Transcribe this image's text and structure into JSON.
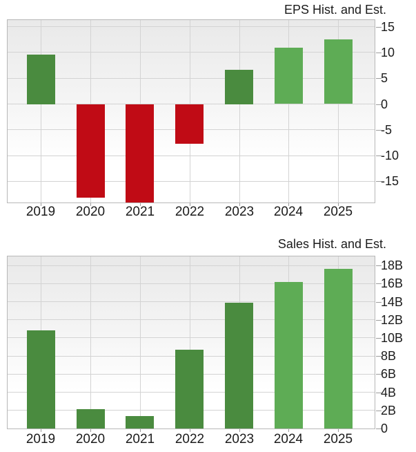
{
  "chart_data": [
    {
      "type": "bar",
      "title": "EPS Hist. and Est.",
      "categories": [
        "2019",
        "2020",
        "2021",
        "2022",
        "2023",
        "2024",
        "2025"
      ],
      "values": [
        9.6,
        -18.1,
        -19.1,
        -7.6,
        6.7,
        10.9,
        12.5
      ],
      "bar_roles": [
        "historical",
        "negative",
        "negative",
        "negative",
        "historical",
        "estimate",
        "estimate"
      ],
      "xlabel": "",
      "ylabel": "",
      "ylim": [
        -19.1,
        16.3
      ],
      "y_ticks": [
        {
          "value": 15,
          "label": "15"
        },
        {
          "value": 10,
          "label": "10"
        },
        {
          "value": 5,
          "label": "5"
        },
        {
          "value": 0,
          "label": "0"
        },
        {
          "value": -5,
          "label": "-5"
        },
        {
          "value": -10,
          "label": "-10"
        },
        {
          "value": -15,
          "label": "-15"
        }
      ],
      "y_axis_side": "right",
      "grid": true,
      "legend": "none"
    },
    {
      "type": "bar",
      "title": "Sales Hist. and Est.",
      "categories": [
        "2019",
        "2020",
        "2021",
        "2022",
        "2023",
        "2024",
        "2025"
      ],
      "values": [
        10.8,
        2.1,
        1.4,
        8.7,
        13.9,
        16.2,
        17.6
      ],
      "values_unit": "B",
      "bar_roles": [
        "historical",
        "historical",
        "historical",
        "historical",
        "historical",
        "estimate",
        "estimate"
      ],
      "xlabel": "",
      "ylabel": "",
      "ylim": [
        0,
        19
      ],
      "y_ticks": [
        {
          "value": 18,
          "label": "18B"
        },
        {
          "value": 16,
          "label": "16B"
        },
        {
          "value": 14,
          "label": "14B"
        },
        {
          "value": 12,
          "label": "12B"
        },
        {
          "value": 10,
          "label": "10B"
        },
        {
          "value": 8,
          "label": "8B"
        },
        {
          "value": 6,
          "label": "6B"
        },
        {
          "value": 4,
          "label": "4B"
        },
        {
          "value": 2,
          "label": "2B"
        },
        {
          "value": 0,
          "label": "0"
        }
      ],
      "y_axis_side": "right",
      "grid": true,
      "legend": "none"
    }
  ],
  "colors": {
    "historical": "#4a8b3f",
    "estimate": "#5eac55",
    "negative": "#c00b15",
    "gridline": "#d3d3d3",
    "plot_border": "#b7b7b7",
    "plot_bg_top": "#e9e9e9",
    "plot_bg_bottom": "#ffffff",
    "text": "#1b1b1b"
  }
}
